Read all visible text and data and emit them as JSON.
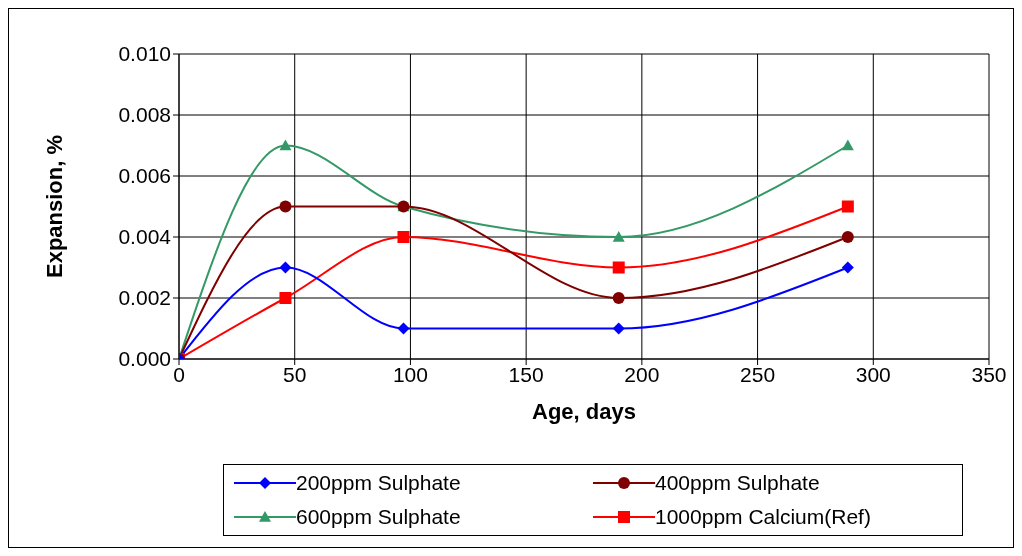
{
  "chart_data": {
    "type": "line",
    "xlabel": "Age, days",
    "ylabel": "Expansion, %",
    "x": [
      0,
      46,
      97,
      190,
      289
    ],
    "xlim": [
      0,
      350
    ],
    "xticks": [
      0,
      50,
      100,
      150,
      200,
      250,
      300,
      350
    ],
    "ylim": [
      0,
      0.01
    ],
    "yticks": [
      {
        "value": 0,
        "label": "0.000"
      },
      {
        "value": 0.002,
        "label": "0.002"
      },
      {
        "value": 0.004,
        "label": "0.004"
      },
      {
        "value": 0.006,
        "label": "0.006"
      },
      {
        "value": 0.008,
        "label": "0.008"
      },
      {
        "value": 0.01,
        "label": "0.010"
      }
    ],
    "grid": true,
    "legend": "bottom",
    "series": [
      {
        "name": "200ppm Sulphate",
        "color": "#0000ff",
        "marker": "diamond",
        "values": [
          0,
          0.003,
          0.001,
          0.001,
          0.003
        ]
      },
      {
        "name": "400ppm Sulphate",
        "color": "#800000",
        "marker": "circle",
        "values": [
          0,
          0.005,
          0.005,
          0.002,
          0.004
        ]
      },
      {
        "name": "600ppm Sulphate",
        "color": "#339966",
        "marker": "triangle",
        "values": [
          0,
          0.007,
          0.005,
          0.004,
          0.007
        ]
      },
      {
        "name": "1000ppm Calcium(Ref)",
        "color": "#ff0000",
        "marker": "square",
        "values": [
          0,
          0.002,
          0.004,
          0.003,
          0.005
        ]
      }
    ]
  }
}
